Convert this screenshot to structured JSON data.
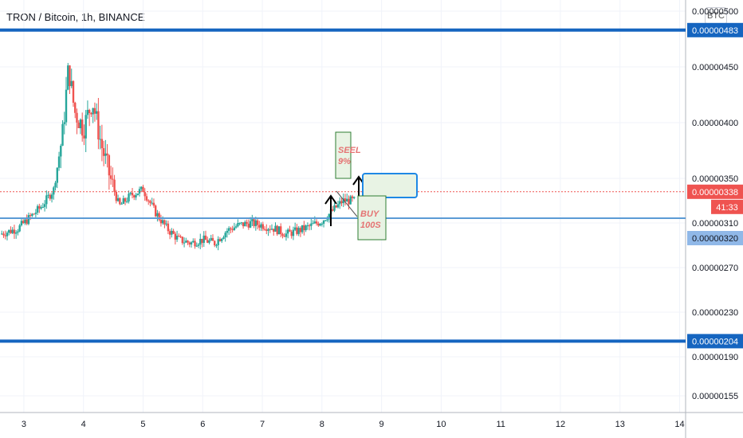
{
  "header": {
    "title": "TRON / Bitcoin, 1h, BINANCE",
    "currency_button": "BTC"
  },
  "colors": {
    "up": "#26a69a",
    "down": "#ef5350",
    "level_line": "#1565c0",
    "mid_line": "#5b9bd5",
    "price_badge": "#ef5350",
    "note_fill": "#e8f3e4",
    "note_border": "#2e7d32",
    "note_text": "#e57373"
  },
  "chart_data": {
    "type": "candlestick",
    "title": "TRON / Bitcoin, 1h, BINANCE",
    "x_tick_labels": [
      "3",
      "4",
      "5",
      "6",
      "7",
      "8",
      "9",
      "10",
      "11",
      "12",
      "13",
      "14"
    ],
    "xlim": [
      2.6,
      14.1
    ],
    "y_tick_labels": [
      "0.00000500",
      "0.00000450",
      "0.00000400",
      "0.00000350",
      "0.00000310",
      "0.00000270",
      "0.00000230",
      "0.00000190",
      "0.00000155"
    ],
    "y_tick_values": [
      5e-06,
      4.5e-06,
      4e-06,
      3.5e-06,
      3.1e-06,
      2.7e-06,
      2.3e-06,
      1.9e-06,
      1.55e-06
    ],
    "ylim": [
      1.4e-06,
      5.1e-06
    ],
    "grid": true,
    "close_prices": [
      {
        "x": 2.6,
        "y": 3e-06
      },
      {
        "x": 2.9,
        "y": 3.05e-06
      },
      {
        "x": 3.1,
        "y": 3.15e-06
      },
      {
        "x": 3.3,
        "y": 3.25e-06
      },
      {
        "x": 3.5,
        "y": 3.4e-06
      },
      {
        "x": 3.65,
        "y": 3.9e-06
      },
      {
        "x": 3.75,
        "y": 4.5e-06
      },
      {
        "x": 3.85,
        "y": 4.1e-06
      },
      {
        "x": 4.0,
        "y": 3.95e-06
      },
      {
        "x": 4.15,
        "y": 4.2e-06
      },
      {
        "x": 4.3,
        "y": 3.8e-06
      },
      {
        "x": 4.45,
        "y": 3.5e-06
      },
      {
        "x": 4.6,
        "y": 3.25e-06
      },
      {
        "x": 4.8,
        "y": 3.35e-06
      },
      {
        "x": 5.0,
        "y": 3.4e-06
      },
      {
        "x": 5.2,
        "y": 3.2e-06
      },
      {
        "x": 5.4,
        "y": 3.05e-06
      },
      {
        "x": 5.6,
        "y": 2.95e-06
      },
      {
        "x": 5.8,
        "y": 2.92e-06
      },
      {
        "x": 6.0,
        "y": 2.95e-06
      },
      {
        "x": 6.2,
        "y": 2.92e-06
      },
      {
        "x": 6.4,
        "y": 3.03e-06
      },
      {
        "x": 6.6,
        "y": 3.08e-06
      },
      {
        "x": 6.8,
        "y": 3.1e-06
      },
      {
        "x": 7.0,
        "y": 3.08e-06
      },
      {
        "x": 7.2,
        "y": 3.05e-06
      },
      {
        "x": 7.4,
        "y": 3e-06
      },
      {
        "x": 7.6,
        "y": 3.03e-06
      },
      {
        "x": 7.8,
        "y": 3.07e-06
      },
      {
        "x": 8.0,
        "y": 3.12e-06
      },
      {
        "x": 8.2,
        "y": 3.22e-06
      },
      {
        "x": 8.35,
        "y": 3.3e-06
      },
      {
        "x": 8.5,
        "y": 3.3e-06
      }
    ],
    "horizontal_levels": [
      {
        "label": "0.00000483",
        "value": 4.83e-06
      },
      {
        "label": "0.00000204",
        "value": 2.04e-06
      }
    ],
    "mid_line": {
      "label": "0.00000320",
      "value": 3.2e-06
    },
    "current_price": {
      "label": "0.00000338",
      "value": 3.38e-06,
      "countdown": "41:33"
    },
    "annotations": [
      {
        "text": "SEEL 9%",
        "x": 8.35,
        "y": 3.75e-06
      },
      {
        "text": "BUY 100S",
        "x": 8.65,
        "y": 3.2e-06
      }
    ]
  }
}
